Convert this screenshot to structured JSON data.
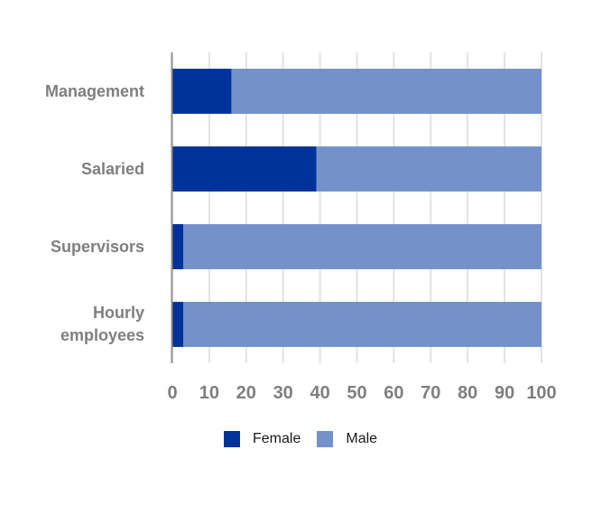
{
  "chart_data": {
    "type": "bar",
    "orientation": "horizontal",
    "stacked": true,
    "categories": [
      "Management",
      "Salaried",
      "Supervisors",
      "Hourly employees"
    ],
    "series": [
      {
        "name": "Female",
        "color": "#003399",
        "values": [
          16,
          39,
          3,
          3
        ]
      },
      {
        "name": "Male",
        "color": "#7392c9",
        "values": [
          84,
          61,
          97,
          97
        ]
      }
    ],
    "xlim": [
      0,
      100
    ],
    "xticks": [
      "0",
      "10",
      "20",
      "30",
      "40",
      "50",
      "60",
      "70",
      "80",
      "90",
      "100"
    ],
    "grid": true,
    "legend_position": "bottom"
  }
}
